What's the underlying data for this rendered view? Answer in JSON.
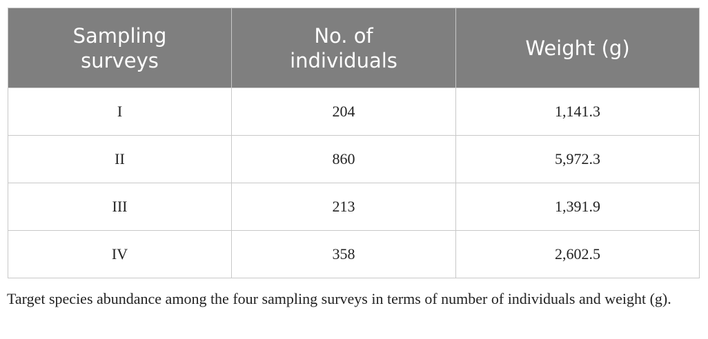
{
  "table": {
    "header": [
      "Sampling surveys",
      "No. of individuals",
      "Weight (g)"
    ],
    "rows": [
      [
        "I",
        204,
        "1,141.3"
      ],
      [
        "II",
        860,
        "5,972.3"
      ],
      [
        "III",
        213,
        "1,391.9"
      ],
      [
        "IV",
        358,
        "2,602.5"
      ]
    ]
  },
  "caption": "Target species abundance among the four sampling surveys in terms of number of individuals and weight (g)."
}
